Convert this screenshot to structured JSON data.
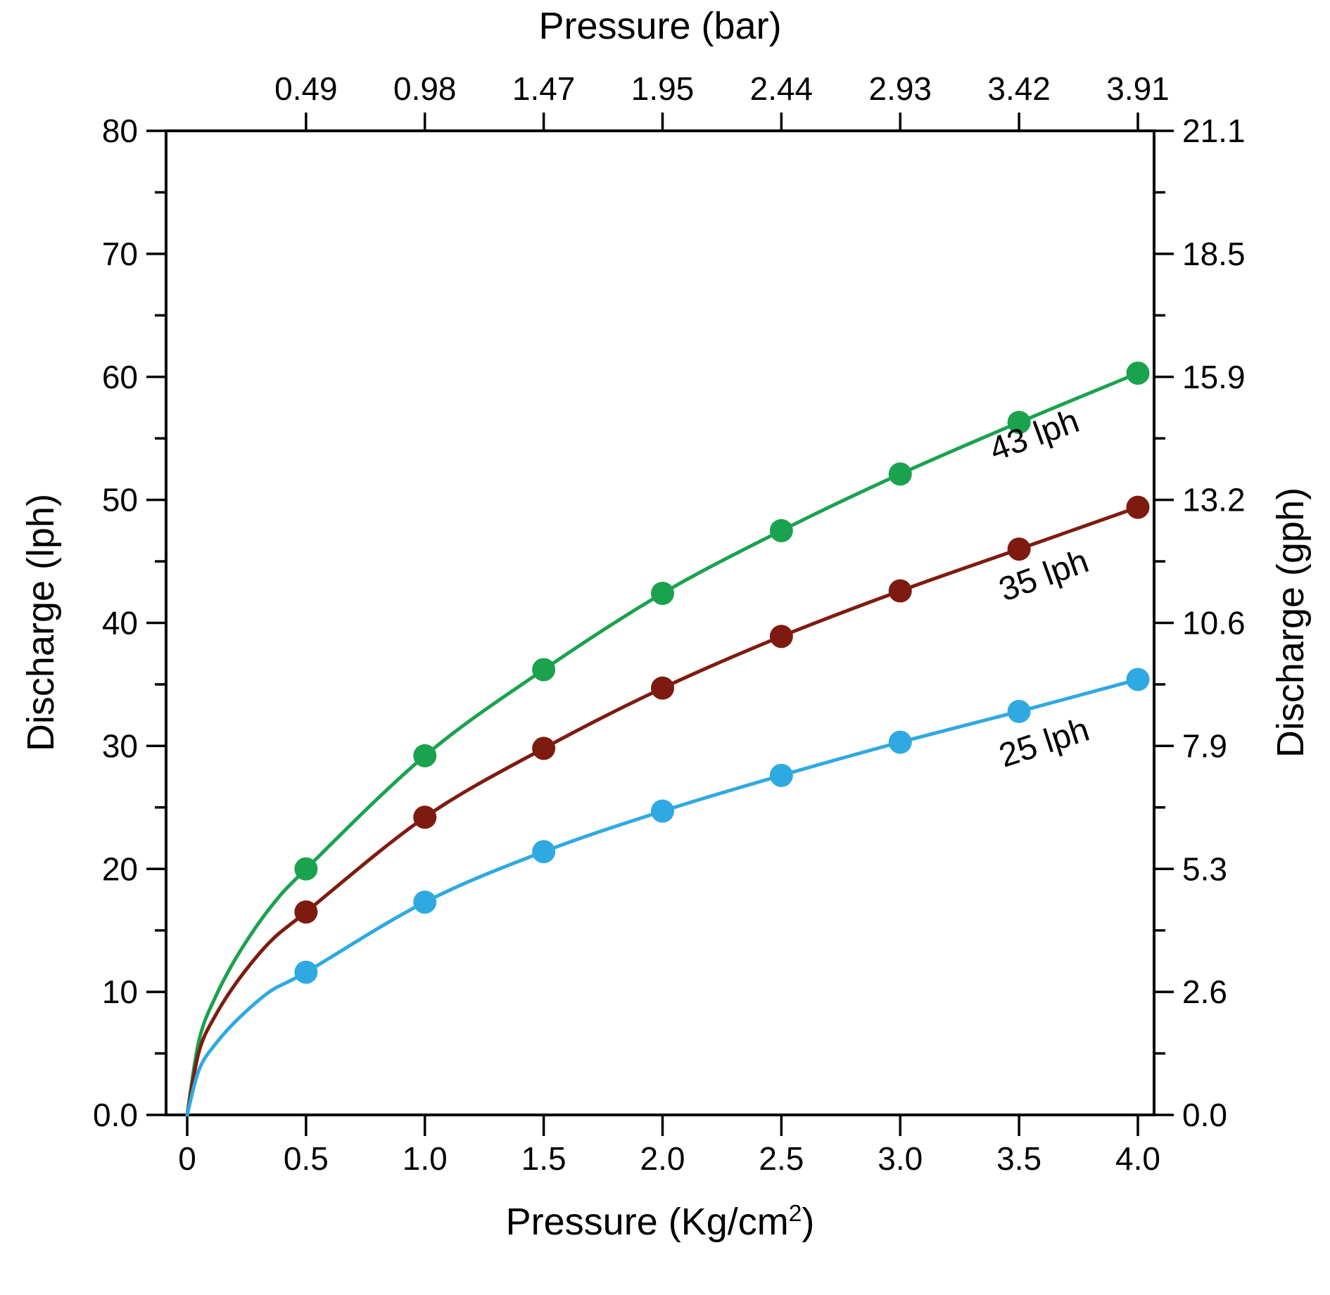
{
  "chart_data": {
    "type": "line",
    "title": "",
    "x_bottom": {
      "label_prefix": "Pressure (Kg/cm",
      "label_sup": "2",
      "label_suffix": ")",
      "ticks": [
        0,
        0.5,
        1.0,
        1.5,
        2.0,
        2.5,
        3.0,
        3.5,
        4.0
      ],
      "tick_labels": [
        "0",
        "0.5",
        "1.0",
        "1.5",
        "2.0",
        "2.5",
        "3.0",
        "3.5",
        "4.0"
      ],
      "range": [
        0,
        4.0
      ]
    },
    "x_top": {
      "label": "Pressure (bar)",
      "tick_positions": [
        0.5,
        1.0,
        1.5,
        2.0,
        2.5,
        3.0,
        3.5,
        4.0
      ],
      "tick_labels": [
        "0.49",
        "0.98",
        "1.47",
        "1.95",
        "2.44",
        "2.93",
        "3.42",
        "3.91"
      ]
    },
    "y_left": {
      "label": "Discharge (lph)",
      "ticks": [
        0,
        10,
        20,
        30,
        40,
        50,
        60,
        70,
        80
      ],
      "tick_labels": [
        "0.0",
        "10",
        "20",
        "30",
        "40",
        "50",
        "60",
        "70",
        "80"
      ],
      "minor_ticks": [
        5,
        15,
        25,
        35,
        45,
        55,
        65,
        75
      ],
      "range": [
        0,
        80
      ]
    },
    "y_right": {
      "label": "Discharge (gph)",
      "tick_positions": [
        0,
        10,
        20,
        30,
        40,
        50,
        60,
        70,
        80
      ],
      "tick_labels": [
        "0.0",
        "2.6",
        "5.3",
        "7.9",
        "10.6",
        "13.2",
        "15.9",
        "18.5",
        "21.1"
      ],
      "minor_ticks": [
        5,
        15,
        25,
        35,
        45,
        55,
        65,
        75
      ]
    },
    "x": [
      0.5,
      1.0,
      1.5,
      2.0,
      2.5,
      3.0,
      3.5,
      4.0
    ],
    "origin_point": {
      "x": 0,
      "y": 0
    },
    "series": [
      {
        "name": "43 lph",
        "color": "#1aa24e",
        "values": [
          20.0,
          29.2,
          36.2,
          42.4,
          47.5,
          52.1,
          56.3,
          60.3
        ],
        "label_pos": {
          "x": 3.58,
          "y": 54.4
        },
        "label_rotation": -20
      },
      {
        "name": "35 lph",
        "color": "#7e1b10",
        "values": [
          16.5,
          24.2,
          29.8,
          34.7,
          38.9,
          42.6,
          46.0,
          49.4
        ],
        "label_pos": {
          "x": 3.62,
          "y": 43.0
        },
        "label_rotation": -20
      },
      {
        "name": "25 lph",
        "color": "#2fa9e1",
        "values": [
          11.6,
          17.3,
          21.4,
          24.7,
          27.6,
          30.3,
          32.8,
          35.4
        ],
        "label_pos": {
          "x": 3.62,
          "y": 29.4
        },
        "label_rotation": -18
      }
    ],
    "grid": false,
    "legend": "inline-curve-labels",
    "axis_color": "#000000",
    "background": "#ffffff"
  }
}
